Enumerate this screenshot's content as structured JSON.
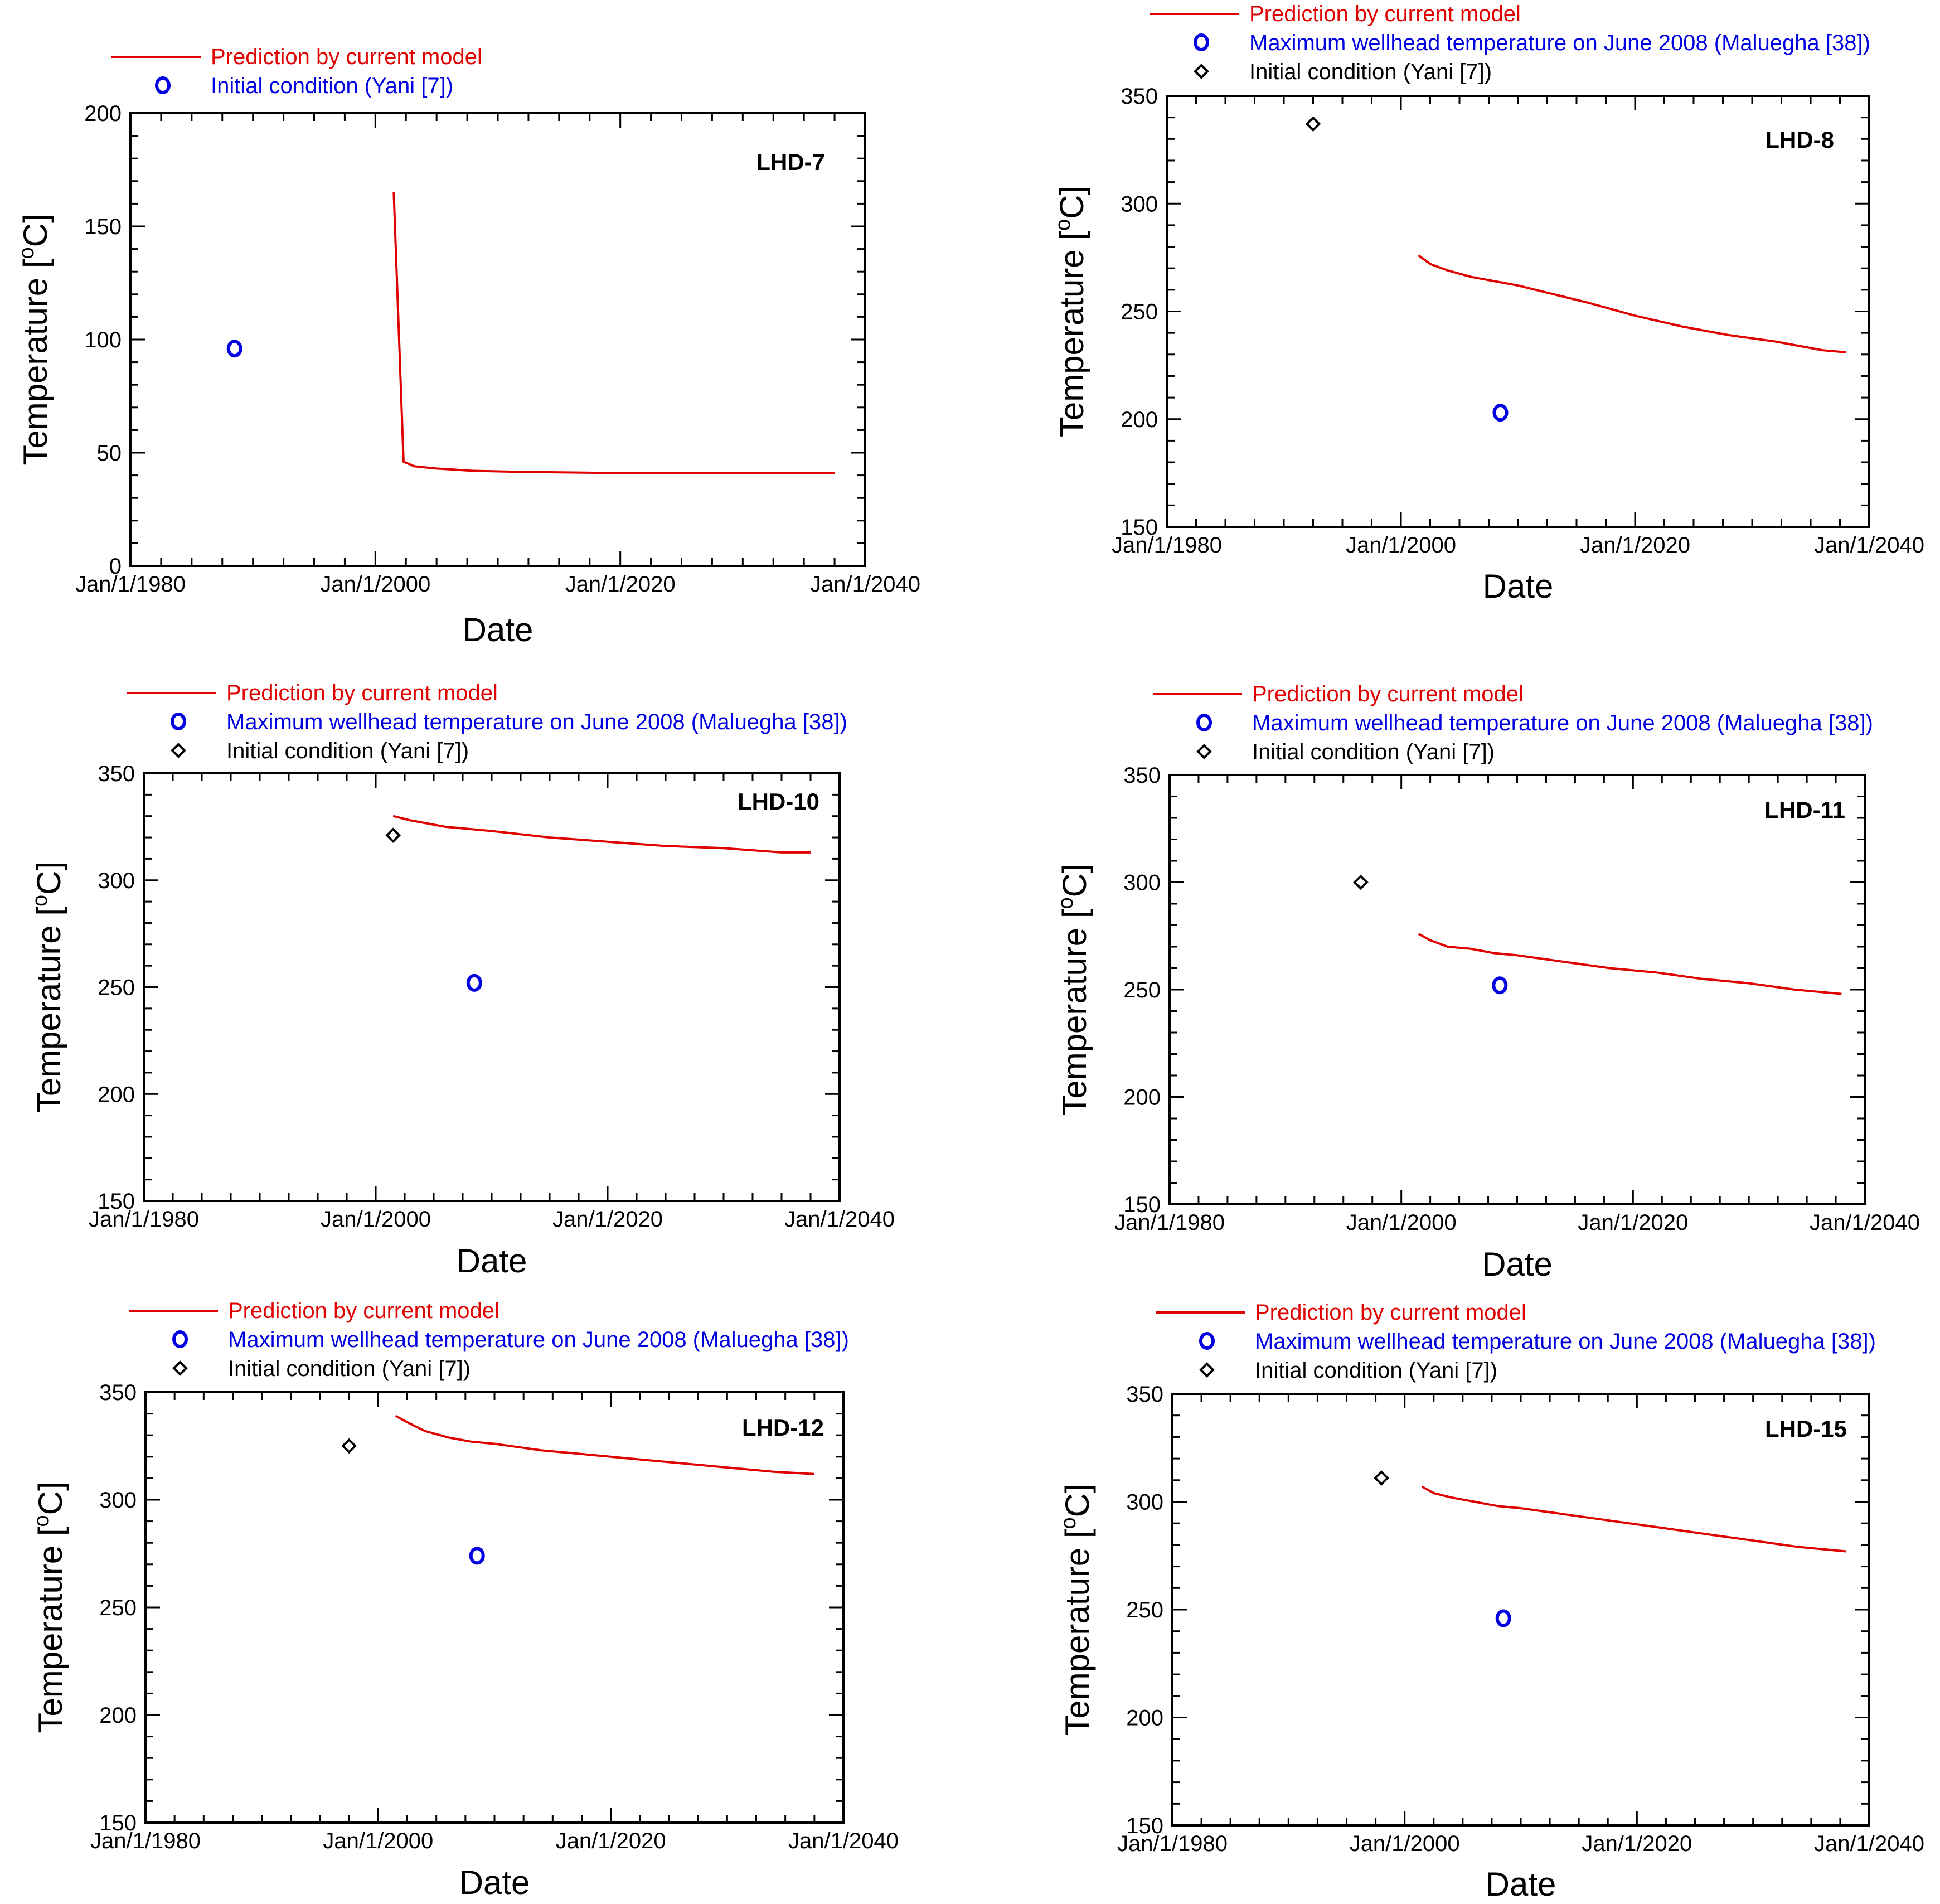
{
  "figure": {
    "colors": {
      "prediction": "#e00000",
      "measured": "#0000e0",
      "initial": "#000000",
      "axes": "#000000",
      "background": "#ffffff"
    },
    "legend_labels": {
      "prediction": "Prediction by current model",
      "measured": "Maximum wellhead temperature on June 2008 (Maluegha [38])",
      "initial": "Initial condition (Yani [7])"
    }
  },
  "chart_data": [
    {
      "type": "line",
      "title": "LHD-7",
      "xlabel": "Date",
      "ylabel": "Temperature [°C]",
      "ylabel_main": "Temperature [",
      "ylabel_sup": "o",
      "ylabel_end": "C]",
      "xlim": [
        1980,
        2040
      ],
      "ylim": [
        0,
        200
      ],
      "x_ticks": [
        1980,
        2000,
        2020,
        2040
      ],
      "x_tick_labels": [
        "Jan/1/1980",
        "Jan/1/2000",
        "Jan/1/2020",
        "Jan/1/2040"
      ],
      "y_ticks": [
        0,
        50,
        100,
        150,
        200
      ],
      "y_tick_labels": [
        "0",
        "50",
        "100",
        "150",
        "200"
      ],
      "legend": [
        "Prediction by current model",
        "Initial condition (Yani [7])"
      ],
      "series": [
        {
          "name": "Prediction by current model",
          "kind": "line",
          "x": [
            2001.5,
            2002.3,
            2003.2,
            2005.0,
            2008.0,
            2012.0,
            2020.0,
            2030.0,
            2037.5
          ],
          "y": [
            165,
            46,
            44,
            43,
            42,
            41.5,
            41,
            41,
            41
          ]
        },
        {
          "name": "Initial condition (Yani [7])",
          "kind": "circle",
          "color_key": "measured",
          "x": [
            1988.5
          ],
          "y": [
            96
          ]
        }
      ]
    },
    {
      "type": "line",
      "title": "LHD-8",
      "xlabel": "Date",
      "ylabel": "Temperature [°C]",
      "ylabel_main": "Temperature [",
      "ylabel_sup": "o",
      "ylabel_end": "C]",
      "xlim": [
        1980,
        2040
      ],
      "ylim": [
        150,
        350
      ],
      "x_ticks": [
        1980,
        2000,
        2020,
        2040
      ],
      "x_tick_labels": [
        "Jan/1/1980",
        "Jan/1/2000",
        "Jan/1/2020",
        "Jan/1/2040"
      ],
      "y_ticks": [
        150,
        200,
        250,
        300,
        350
      ],
      "y_tick_labels": [
        "150",
        "200",
        "250",
        "300",
        "350"
      ],
      "legend": [
        "Prediction by current model",
        "Maximum wellhead temperature on June 2008 (Maluegha [38])",
        "Initial condition (Yani [7])"
      ],
      "series": [
        {
          "name": "Prediction by current model",
          "kind": "line",
          "x": [
            2001.5,
            2002.5,
            2004,
            2006,
            2008,
            2010,
            2013,
            2016,
            2020,
            2024,
            2028,
            2032,
            2036,
            2038
          ],
          "y": [
            276,
            272,
            269,
            266,
            264,
            262,
            258,
            254,
            248,
            243,
            239,
            236,
            232,
            231
          ]
        },
        {
          "name": "Maximum wellhead temperature on June 2008 (Maluegha [38])",
          "kind": "circle",
          "x": [
            2008.5
          ],
          "y": [
            203
          ]
        },
        {
          "name": "Initial condition (Yani [7])",
          "kind": "diamond",
          "x": [
            1992.5
          ],
          "y": [
            337
          ]
        }
      ]
    },
    {
      "type": "line",
      "title": "LHD-10",
      "xlabel": "Date",
      "ylabel": "Temperature [°C]",
      "ylabel_main": "Temperature [",
      "ylabel_sup": "o",
      "ylabel_end": "C]",
      "xlim": [
        1980,
        2040
      ],
      "ylim": [
        150,
        350
      ],
      "x_ticks": [
        1980,
        2000,
        2020,
        2040
      ],
      "x_tick_labels": [
        "Jan/1/1980",
        "Jan/1/2000",
        "Jan/1/2020",
        "Jan/1/2040"
      ],
      "y_ticks": [
        150,
        200,
        250,
        300,
        350
      ],
      "y_tick_labels": [
        "150",
        "200",
        "250",
        "300",
        "350"
      ],
      "legend": [
        "Prediction by current model",
        "Maximum wellhead temperature on June 2008 (Maluegha [38])",
        "Initial condition (Yani [7])"
      ],
      "series": [
        {
          "name": "Prediction by current model",
          "kind": "line",
          "x": [
            2001.5,
            2003,
            2006,
            2010,
            2015,
            2020,
            2025,
            2030,
            2035,
            2037.5
          ],
          "y": [
            330,
            328,
            325,
            323,
            320,
            318,
            316,
            315,
            313,
            313
          ]
        },
        {
          "name": "Maximum wellhead temperature on June 2008 (Maluegha [38])",
          "kind": "circle",
          "x": [
            2008.5
          ],
          "y": [
            252
          ]
        },
        {
          "name": "Initial condition (Yani [7])",
          "kind": "diamond",
          "x": [
            2001.5
          ],
          "y": [
            321
          ]
        }
      ]
    },
    {
      "type": "line",
      "title": "LHD-11",
      "xlabel": "Date",
      "ylabel": "Temperature [°C]",
      "ylabel_main": "Temperature [",
      "ylabel_sup": "o",
      "ylabel_end": "C]",
      "xlim": [
        1980,
        2040
      ],
      "ylim": [
        150,
        350
      ],
      "x_ticks": [
        1980,
        2000,
        2020,
        2040
      ],
      "x_tick_labels": [
        "Jan/1/1980",
        "Jan/1/2000",
        "Jan/1/2020",
        "Jan/1/2040"
      ],
      "y_ticks": [
        150,
        200,
        250,
        300,
        350
      ],
      "y_tick_labels": [
        "150",
        "200",
        "250",
        "300",
        "350"
      ],
      "legend": [
        "Prediction by current model",
        "Maximum wellhead temperature on June 2008 (Maluegha [38])",
        "Initial condition (Yani [7])"
      ],
      "series": [
        {
          "name": "Prediction by current model",
          "kind": "line",
          "x": [
            2001.5,
            2002.5,
            2004,
            2006,
            2008,
            2010,
            2014,
            2018,
            2022,
            2026,
            2030,
            2034,
            2038
          ],
          "y": [
            276,
            273,
            270,
            269,
            267,
            266,
            263,
            260,
            258,
            255,
            253,
            250,
            248
          ]
        },
        {
          "name": "Maximum wellhead temperature on June 2008 (Maluegha [38])",
          "kind": "circle",
          "x": [
            2008.5
          ],
          "y": [
            252
          ]
        },
        {
          "name": "Initial condition (Yani [7])",
          "kind": "diamond",
          "x": [
            1996.5
          ],
          "y": [
            300
          ]
        }
      ]
    },
    {
      "type": "line",
      "title": "LHD-12",
      "xlabel": "Date",
      "ylabel": "Temperature [°C]",
      "ylabel_main": "Temperature [",
      "ylabel_sup": "o",
      "ylabel_end": "C]",
      "xlim": [
        1980,
        2040
      ],
      "ylim": [
        150,
        350
      ],
      "x_ticks": [
        1980,
        2000,
        2020,
        2040
      ],
      "x_tick_labels": [
        "Jan/1/1980",
        "Jan/1/2000",
        "Jan/1/2020",
        "Jan/1/2040"
      ],
      "y_ticks": [
        150,
        200,
        250,
        300,
        350
      ],
      "y_tick_labels": [
        "150",
        "200",
        "250",
        "300",
        "350"
      ],
      "legend": [
        "Prediction by current model",
        "Maximum wellhead temperature on June 2008 (Maluegha [38])",
        "Initial condition (Yani [7])"
      ],
      "series": [
        {
          "name": "Prediction by current model",
          "kind": "line",
          "x": [
            2001.5,
            2002.5,
            2004,
            2006,
            2008,
            2010,
            2014,
            2018,
            2022,
            2026,
            2030,
            2034,
            2037.5
          ],
          "y": [
            339,
            336,
            332,
            329,
            327,
            326,
            323,
            321,
            319,
            317,
            315,
            313,
            312
          ]
        },
        {
          "name": "Maximum wellhead temperature on June 2008 (Maluegha [38])",
          "kind": "circle",
          "x": [
            2008.5
          ],
          "y": [
            274
          ]
        },
        {
          "name": "Initial condition (Yani [7])",
          "kind": "diamond",
          "x": [
            1997.5
          ],
          "y": [
            325
          ]
        }
      ]
    },
    {
      "type": "line",
      "title": "LHD-15",
      "xlabel": "Date",
      "ylabel": "Temperature [°C]",
      "ylabel_main": "Temperature [",
      "ylabel_sup": "o",
      "ylabel_end": "C]",
      "xlim": [
        1980,
        2040
      ],
      "ylim": [
        150,
        350
      ],
      "x_ticks": [
        1980,
        2000,
        2020,
        2040
      ],
      "x_tick_labels": [
        "Jan/1/1980",
        "Jan/1/2000",
        "Jan/1/2020",
        "Jan/1/2040"
      ],
      "y_ticks": [
        150,
        200,
        250,
        300,
        350
      ],
      "y_tick_labels": [
        "150",
        "200",
        "250",
        "300",
        "350"
      ],
      "legend": [
        "Prediction by current model",
        "Maximum wellhead temperature on June 2008 (Maluegha [38])",
        "Initial condition (Yani [7])"
      ],
      "series": [
        {
          "name": "Prediction by current model",
          "kind": "line",
          "x": [
            2001.5,
            2002.5,
            2004,
            2006,
            2008,
            2010,
            2014,
            2018,
            2022,
            2026,
            2030,
            2034,
            2038
          ],
          "y": [
            307,
            304,
            302,
            300,
            298,
            297,
            294,
            291,
            288,
            285,
            282,
            279,
            277
          ]
        },
        {
          "name": "Maximum wellhead temperature on June 2008 (Maluegha [38])",
          "kind": "circle",
          "x": [
            2008.5
          ],
          "y": [
            246
          ]
        },
        {
          "name": "Initial condition (Yani [7])",
          "kind": "diamond",
          "x": [
            1998.0
          ],
          "y": [
            311
          ]
        }
      ]
    }
  ]
}
